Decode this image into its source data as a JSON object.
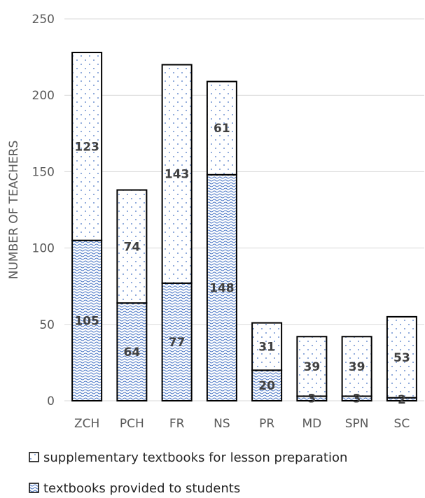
{
  "chart_data": {
    "type": "bar",
    "stacked": true,
    "categories": [
      "ZCH",
      "PCH",
      "FR",
      "NS",
      "PR",
      "MD",
      "SPN",
      "SC"
    ],
    "series": [
      {
        "name": "textbooks provided to students",
        "values": [
          105,
          64,
          77,
          148,
          20,
          3,
          3,
          2
        ],
        "pattern": "wave-blue"
      },
      {
        "name": "supplementary textbooks for lesson preparation",
        "values": [
          123,
          74,
          143,
          61,
          31,
          39,
          39,
          53
        ],
        "pattern": "dots"
      }
    ],
    "title": "",
    "xlabel": "",
    "ylabel": "NUMBER OF TEACHERS",
    "ylim": [
      0,
      250
    ],
    "yticks": [
      0,
      50,
      100,
      150,
      200,
      250
    ],
    "grid": true,
    "legend_position": "bottom",
    "colors": {
      "grid": "#d9d9d9",
      "bar_outline": "#000000",
      "text": "#595959",
      "label": "#404040",
      "wave": "#4472c4"
    }
  }
}
